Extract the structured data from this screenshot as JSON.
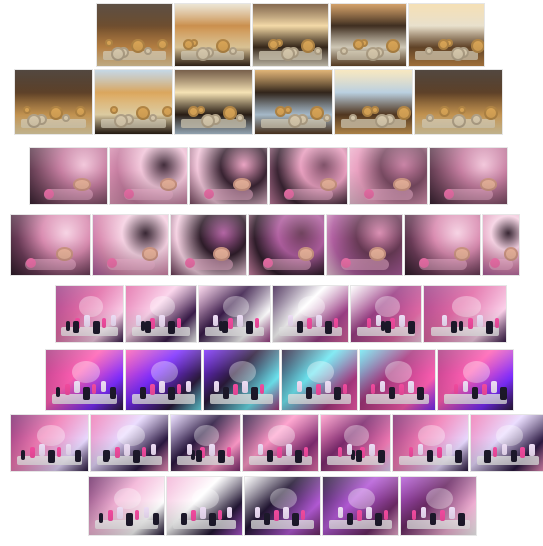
{
  "gallery": {
    "rows": [
      {
        "theme": "kitchen",
        "palette": [
          "#6b4a2b",
          "#c98d4a",
          "#f3d9a6",
          "#3b2a1c",
          "#e8e0cc"
        ],
        "count": 5
      },
      {
        "theme": "kitchen",
        "palette": [
          "#5a3d24",
          "#d9a45a",
          "#f6e3b4",
          "#2d2016",
          "#b9cfe0"
        ],
        "count": 6
      },
      {
        "theme": "cat-bedroom",
        "palette": [
          "#7a4b63",
          "#c77fa2",
          "#f2c6da",
          "#3a2433",
          "#e9a0c0"
        ],
        "count": 6
      },
      {
        "theme": "cat-bedroom",
        "palette": [
          "#6a3b57",
          "#d98bb0",
          "#f6d2e3",
          "#2f1d2a",
          "#b05fa0"
        ],
        "count": 7
      },
      {
        "theme": "makeup-studio",
        "palette": [
          "#9b3f86",
          "#e16aa6",
          "#fbd1ea",
          "#3a1c4a",
          "#ffffff"
        ],
        "count": 6
      },
      {
        "theme": "makeup-studio",
        "palette": [
          "#a8377f",
          "#ff5fb3",
          "#7b2cff",
          "#2b1a3a",
          "#6ee7f2"
        ],
        "count": 6
      },
      {
        "theme": "makeup-studio",
        "palette": [
          "#7d2b6f",
          "#f07ab4",
          "#e8d9ff",
          "#2a1840",
          "#ff9ac9"
        ],
        "count": 7
      },
      {
        "theme": "makeup-studio",
        "palette": [
          "#6b2a65",
          "#f3b2d6",
          "#ffffff",
          "#221633",
          "#b55bd8"
        ],
        "count": 5
      }
    ]
  }
}
